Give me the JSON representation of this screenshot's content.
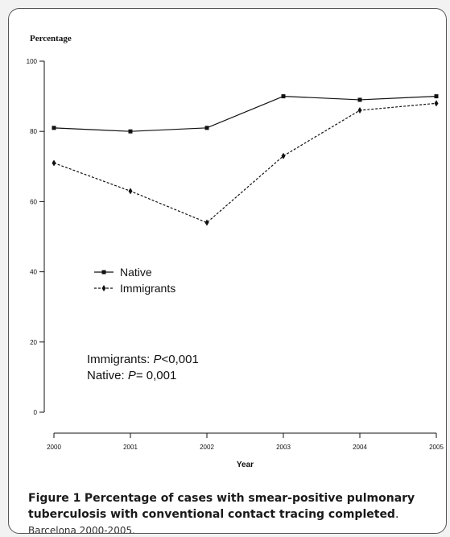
{
  "chart_data": {
    "type": "line",
    "ylabel": "Percentage",
    "xlabel": "Year",
    "x": [
      "2000",
      "2001",
      "2002",
      "2003",
      "2004",
      "2005"
    ],
    "ylim": [
      0,
      100
    ],
    "yticks": [
      0,
      20,
      40,
      60,
      80,
      100
    ],
    "grid": false,
    "legend_placement": "center-left",
    "series": [
      {
        "name": "Native",
        "values": [
          81,
          80,
          81,
          90,
          89,
          90
        ],
        "line": "solid",
        "marker": "square",
        "color": "#111111"
      },
      {
        "name": "Immigrants",
        "values": [
          71,
          63,
          54,
          73,
          86,
          88
        ],
        "line": "dashed",
        "marker": "diamond",
        "color": "#111111"
      }
    ],
    "annotations": [
      {
        "label": "Immigrants: ",
        "italic": "P",
        "value": "<0,001"
      },
      {
        "label": "Native: ",
        "italic": "P",
        "value": "= 0,001"
      }
    ]
  },
  "caption": {
    "label": "Figure 1",
    "title": "Percentage of cases with smear-positive pulmonary tuberculosis with conventional contact tracing completed",
    "end": ".",
    "subtitle": "Barcelona 2000-2005."
  }
}
